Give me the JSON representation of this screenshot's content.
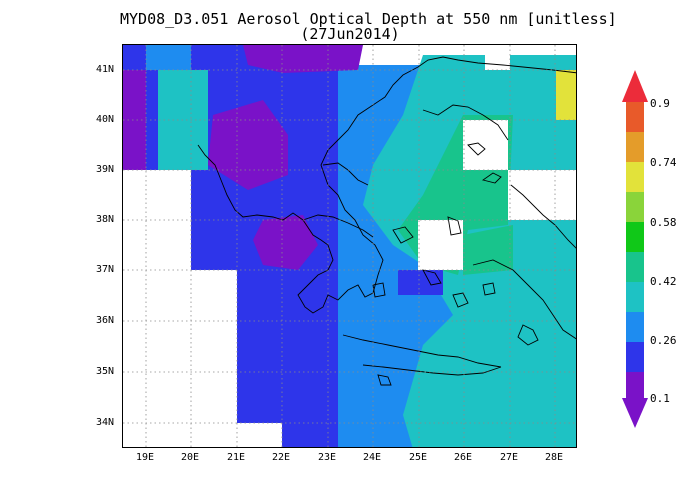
{
  "title": {
    "line1": "MYD08_D3.051 Aerosol Optical Depth at 550 nm [unitless]",
    "line2": "(27Jun2014)"
  },
  "map": {
    "lon_range": [
      18.5,
      28.5
    ],
    "lat_range": [
      33.5,
      41.5
    ],
    "lat_tick_labels": [
      "41N",
      "40N",
      "39N",
      "38N",
      "37N",
      "36N",
      "35N",
      "34N"
    ],
    "lon_tick_labels": [
      "19E",
      "20E",
      "21E",
      "22E",
      "23E",
      "24E",
      "25E",
      "26E",
      "27E",
      "28E"
    ],
    "grid": "dotted",
    "no_data_color": "#ffffff"
  },
  "colorbar": {
    "labels": [
      "0.9",
      "0.74",
      "0.58",
      "0.42",
      "0.26",
      "0.1"
    ],
    "colors": [
      "#7a12c8",
      "#2e35ea",
      "#1e8cf0",
      "#1ec2c4",
      "#18c48c",
      "#10c818",
      "#8ad43a",
      "#e2e23a",
      "#e49c2a",
      "#e85a2a",
      "#ec2c3a"
    ],
    "orientation": "vertical",
    "placement": "right"
  }
}
